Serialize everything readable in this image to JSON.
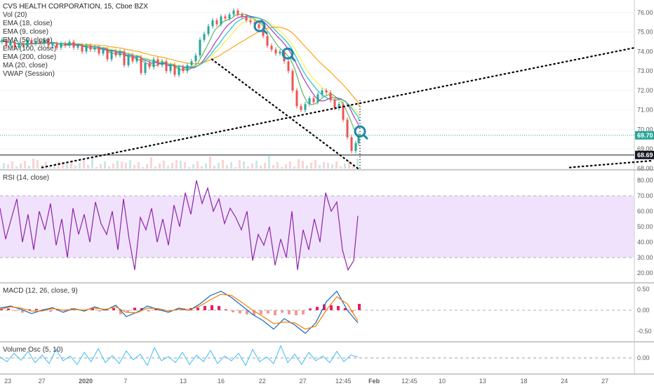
{
  "header": {
    "title": "CVS HEALTH CORPORATION, 15, Cboe BZX",
    "indicators": [
      "Vol (20)",
      "EMA (18, close)",
      "EMA (9, close)",
      "EMA (50, close)",
      "EMA (100, close)",
      "EMA (200, close)",
      "MA (20, close)",
      "VWAP (Session)"
    ]
  },
  "colors": {
    "up": "#26a69a",
    "down": "#ef5350",
    "rsi": "#8e24aa",
    "rsi_band": "#e9d6fb",
    "macd": "#1565c0",
    "signal": "#f57c00",
    "hist_up": "#ef9a9a",
    "hist_down": "#e91e63",
    "vol_osc": "#4fc3f7",
    "trendline": "#000000",
    "marker": "#1e88a8",
    "current_price_bg": "#26a69a",
    "level_bg": "#131722"
  },
  "chart_data": [
    {
      "type": "line",
      "name": "main-price",
      "title": "CVS HEALTH CORPORATION, 15, Cboe BZX",
      "ylim": [
        68.0,
        76.5
      ],
      "yticks": [
        "76.00",
        "75.00",
        "74.00",
        "73.00",
        "72.00",
        "71.00",
        "70.00",
        "69.00",
        "68.00"
      ],
      "ytick_values": [
        76,
        75,
        74,
        73,
        72,
        71,
        70,
        69,
        68
      ],
      "price_tags": [
        {
          "label": "69.70",
          "value": 69.7,
          "style": "current"
        },
        {
          "label": "68.69",
          "value": 68.69,
          "style": "level"
        }
      ],
      "price_path": [
        [
          0,
          74.5
        ],
        [
          6,
          74.6
        ],
        [
          12,
          74.3
        ],
        [
          18,
          74.5
        ],
        [
          24,
          74.2
        ],
        [
          30,
          74.4
        ],
        [
          36,
          74.3
        ],
        [
          42,
          74.6
        ],
        [
          48,
          74.4
        ],
        [
          54,
          74.5
        ],
        [
          60,
          74.4
        ],
        [
          66,
          74.6
        ],
        [
          72,
          74.3
        ],
        [
          78,
          74.4
        ],
        [
          84,
          74.2
        ],
        [
          90,
          74.4
        ],
        [
          96,
          74.3
        ],
        [
          102,
          74.5
        ],
        [
          108,
          74.2
        ],
        [
          114,
          74.3
        ],
        [
          120,
          74.0
        ],
        [
          126,
          74.3
        ],
        [
          132,
          74.1
        ],
        [
          138,
          74.2
        ],
        [
          144,
          73.9
        ],
        [
          150,
          74.1
        ],
        [
          156,
          73.6
        ],
        [
          162,
          74.0
        ],
        [
          168,
          73.8
        ],
        [
          174,
          74.0
        ],
        [
          180,
          73.3
        ],
        [
          186,
          73.8
        ],
        [
          192,
          73.5
        ],
        [
          198,
          73.7
        ],
        [
          204,
          72.9
        ],
        [
          210,
          73.4
        ],
        [
          216,
          73.2
        ],
        [
          222,
          73.6
        ],
        [
          228,
          73.3
        ],
        [
          234,
          73.5
        ],
        [
          240,
          73.0
        ],
        [
          246,
          73.3
        ],
        [
          252,
          72.8
        ],
        [
          258,
          73.2
        ],
        [
          264,
          73.0
        ],
        [
          270,
          73.3
        ],
        [
          276,
          73.5
        ],
        [
          282,
          73.8
        ],
        [
          288,
          74.6
        ],
        [
          294,
          74.9
        ],
        [
          300,
          75.3
        ],
        [
          306,
          75.6
        ],
        [
          312,
          75.4
        ],
        [
          318,
          75.8
        ],
        [
          324,
          75.7
        ],
        [
          330,
          75.9
        ],
        [
          336,
          76.1
        ],
        [
          342,
          75.9
        ],
        [
          348,
          75.8
        ],
        [
          354,
          75.6
        ],
        [
          360,
          75.5
        ],
        [
          366,
          75.4
        ],
        [
          372,
          75.2
        ],
        [
          378,
          74.8
        ],
        [
          384,
          74.3
        ],
        [
          390,
          74.1
        ],
        [
          396,
          73.9
        ],
        [
          402,
          74.0
        ],
        [
          408,
          73.5
        ],
        [
          414,
          73.0
        ],
        [
          420,
          72.0
        ],
        [
          426,
          71.2
        ],
        [
          432,
          71.0
        ],
        [
          438,
          71.3
        ],
        [
          444,
          71.6
        ],
        [
          450,
          71.4
        ],
        [
          456,
          71.8
        ],
        [
          462,
          72.0
        ],
        [
          468,
          71.9
        ],
        [
          474,
          71.5
        ],
        [
          480,
          71.1
        ],
        [
          486,
          71.3
        ],
        [
          492,
          70.5
        ],
        [
          498,
          69.6
        ],
        [
          504,
          68.9
        ],
        [
          510,
          69.3
        ],
        [
          512,
          69.7
        ]
      ],
      "trendlines": [
        {
          "from": [
            60,
            68.05
          ],
          "to": [
            905,
            74.2
          ]
        },
        {
          "from": [
            302,
            73.6
          ],
          "to": [
            510,
            68.0
          ]
        },
        {
          "from": [
            812,
            68.05
          ],
          "to": [
            930,
            68.4
          ]
        }
      ],
      "markers": [
        [
          370,
          75.3
        ],
        [
          410,
          73.9
        ],
        [
          513,
          69.9
        ]
      ]
    },
    {
      "type": "line",
      "name": "rsi",
      "title": "RSI (14, close)",
      "ylim": [
        15,
        85
      ],
      "yticks": [
        "80.00",
        "70.00",
        "60.00",
        "50.00",
        "40.00",
        "30.00",
        "20.00"
      ],
      "ytick_values": [
        80,
        70,
        60,
        50,
        40,
        30,
        20
      ],
      "band": [
        30,
        70
      ],
      "x": [
        0,
        8,
        16,
        24,
        32,
        40,
        48,
        56,
        64,
        72,
        80,
        88,
        96,
        104,
        112,
        120,
        128,
        136,
        144,
        152,
        160,
        168,
        176,
        184,
        192,
        200,
        208,
        216,
        224,
        232,
        240,
        248,
        256,
        264,
        272,
        280,
        288,
        296,
        304,
        312,
        320,
        328,
        336,
        344,
        352,
        360,
        368,
        376,
        384,
        392,
        400,
        408,
        416,
        424,
        432,
        440,
        448,
        456,
        464,
        472,
        480,
        488,
        496,
        504,
        510
      ],
      "values": [
        62,
        42,
        55,
        68,
        40,
        58,
        35,
        60,
        48,
        65,
        38,
        55,
        30,
        62,
        45,
        58,
        40,
        66,
        52,
        45,
        60,
        35,
        68,
        42,
        22,
        56,
        48,
        62,
        40,
        55,
        38,
        64,
        50,
        72,
        58,
        80,
        65,
        75,
        60,
        68,
        52,
        62,
        56,
        48,
        60,
        28,
        45,
        38,
        50,
        25,
        42,
        30,
        60,
        22,
        48,
        35,
        55,
        40,
        72,
        60,
        66,
        35,
        22,
        28,
        57
      ]
    },
    {
      "type": "line",
      "name": "macd",
      "title": "MACD (12, 26, close, 9)",
      "ylim": [
        -0.7,
        0.6
      ],
      "yticks": [
        "0.50",
        "0.00",
        "-0.50"
      ],
      "ytick_values": [
        0.5,
        0.0,
        -0.5
      ],
      "x": [
        0,
        15,
        30,
        45,
        60,
        75,
        90,
        105,
        120,
        135,
        150,
        165,
        180,
        195,
        210,
        225,
        240,
        255,
        270,
        285,
        300,
        315,
        330,
        345,
        360,
        375,
        390,
        405,
        420,
        435,
        450,
        465,
        480,
        495,
        510
      ],
      "series": [
        {
          "values": [
            0.05,
            0.1,
            0.02,
            -0.08,
            0.0,
            0.06,
            -0.05,
            0.04,
            -0.02,
            0.08,
            0.0,
            0.12,
            -0.15,
            -0.05,
            0.1,
            0.02,
            -0.05,
            0.05,
            0.0,
            0.15,
            0.35,
            0.45,
            0.3,
            0.1,
            -0.1,
            -0.25,
            -0.45,
            -0.2,
            -0.35,
            -0.55,
            -0.3,
            0.2,
            0.45,
            0.0,
            -0.3
          ]
        },
        {
          "values": [
            0.02,
            0.08,
            0.05,
            -0.02,
            -0.02,
            0.04,
            0.0,
            0.02,
            0.0,
            0.05,
            0.02,
            0.08,
            -0.05,
            -0.06,
            0.05,
            0.04,
            -0.02,
            0.02,
            0.01,
            0.1,
            0.25,
            0.38,
            0.35,
            0.18,
            0.0,
            -0.15,
            -0.32,
            -0.28,
            -0.3,
            -0.45,
            -0.38,
            0.0,
            0.32,
            0.15,
            -0.25
          ]
        }
      ],
      "histogram_x": [
        0,
        10,
        20,
        30,
        40,
        50,
        60,
        70,
        80,
        90,
        100,
        110,
        120,
        130,
        140,
        150,
        160,
        170,
        180,
        190,
        200,
        210,
        220,
        230,
        240,
        250,
        260,
        270,
        280,
        290,
        300,
        310,
        320,
        330,
        340,
        350,
        360,
        370,
        380,
        390,
        400,
        410,
        420,
        430,
        440,
        450,
        460,
        470,
        480,
        490,
        500,
        510
      ],
      "histogram": [
        0.03,
        0.04,
        -0.02,
        -0.06,
        0.02,
        0.03,
        0.02,
        -0.04,
        0.03,
        -0.02,
        0.04,
        0.02,
        -0.02,
        0.04,
        -0.03,
        0.03,
        0.05,
        -0.1,
        -0.04,
        0.06,
        0.05,
        -0.03,
        0.04,
        0.02,
        -0.02,
        0.03,
        0.04,
        0.05,
        0.06,
        0.1,
        0.12,
        0.1,
        0.02,
        -0.05,
        -0.08,
        -0.1,
        -0.12,
        -0.1,
        -0.08,
        -0.12,
        -0.06,
        -0.1,
        -0.12,
        -0.1,
        0.04,
        0.08,
        0.14,
        0.12,
        0.1,
        0.05,
        -0.05,
        0.15
      ]
    },
    {
      "type": "line",
      "name": "volume-oscillator",
      "title": "Volume Osc (5, 10)",
      "ylim": [
        -30,
        30
      ],
      "yticks": [
        "0.00"
      ],
      "ytick_values": [
        0
      ],
      "x": [
        0,
        10,
        20,
        30,
        40,
        50,
        60,
        70,
        80,
        90,
        100,
        110,
        120,
        130,
        140,
        150,
        160,
        170,
        180,
        190,
        200,
        210,
        220,
        230,
        240,
        250,
        260,
        270,
        280,
        290,
        300,
        310,
        320,
        330,
        340,
        350,
        360,
        370,
        380,
        390,
        400,
        410,
        420,
        430,
        440,
        450,
        460,
        470,
        480,
        490,
        500,
        510
      ],
      "values": [
        2,
        -8,
        10,
        -5,
        14,
        -10,
        6,
        -12,
        18,
        -6,
        4,
        -14,
        12,
        -8,
        20,
        -10,
        5,
        -12,
        15,
        -4,
        8,
        -16,
        22,
        -6,
        3,
        -10,
        12,
        -14,
        6,
        -8,
        16,
        -12,
        4,
        -6,
        10,
        -16,
        18,
        -8,
        2,
        -12,
        26,
        -10,
        8,
        -14,
        12,
        -6,
        4,
        -10,
        14,
        -8,
        6,
        2
      ]
    },
    {
      "type": "line",
      "name": "time-axis",
      "categories": [
        "23",
        "27",
        "2020",
        "7",
        "13",
        "16",
        "22",
        "27",
        "12:45",
        "Feb",
        "12:45",
        "10",
        "13",
        "18",
        "24",
        "27"
      ],
      "category_pos": [
        0.012,
        0.064,
        0.131,
        0.192,
        0.28,
        0.338,
        0.401,
        0.463,
        0.525,
        0.572,
        0.626,
        0.676,
        0.738,
        0.801,
        0.863,
        0.925
      ]
    }
  ]
}
